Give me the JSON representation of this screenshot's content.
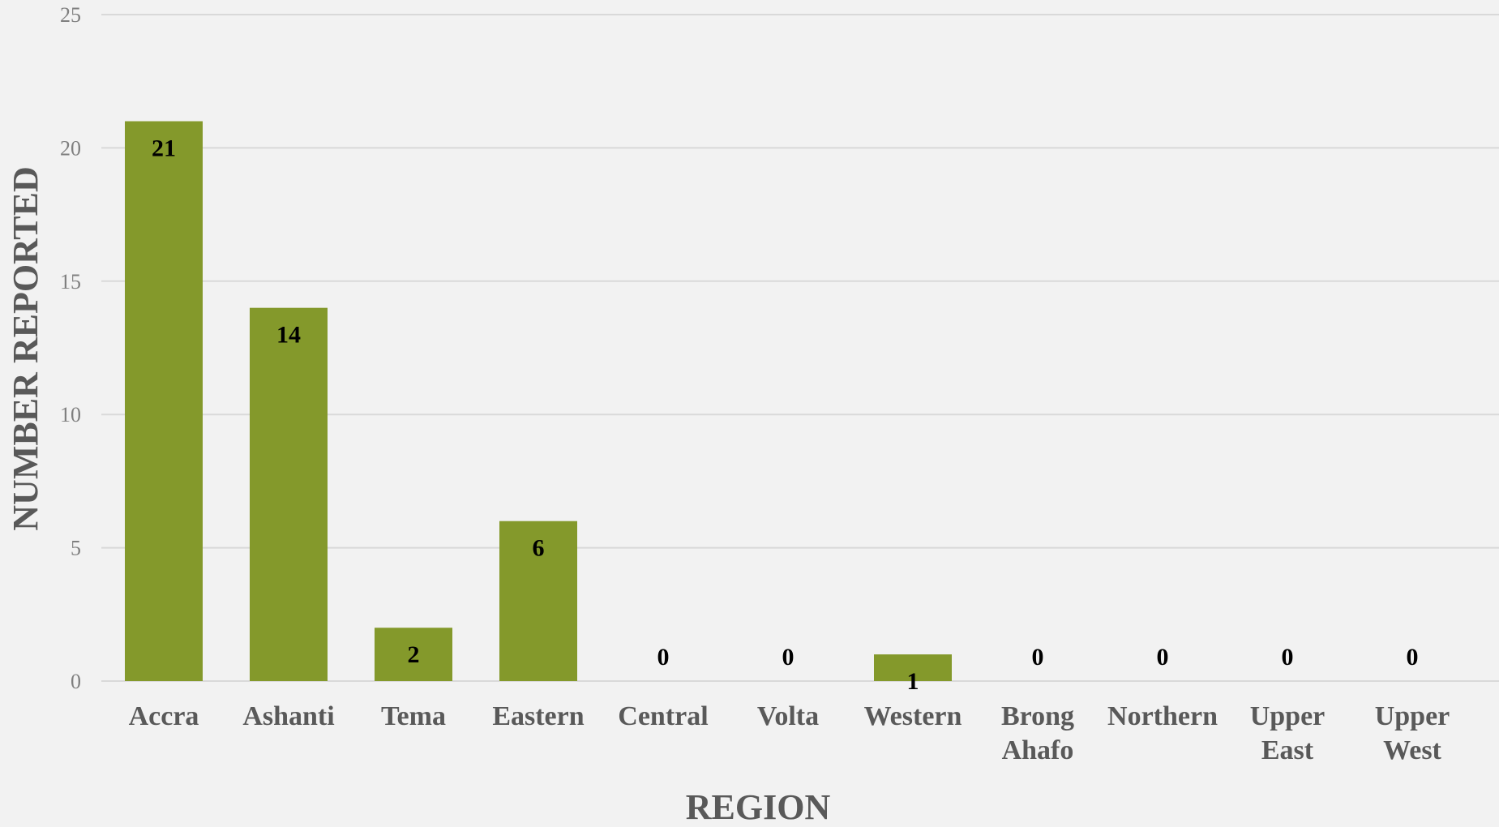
{
  "chart_data": {
    "type": "bar",
    "title": "",
    "xlabel": "REGION",
    "ylabel": "NUMBER REPORTED",
    "ylim": [
      0,
      25
    ],
    "yticks": [
      0,
      5,
      10,
      15,
      20,
      25
    ],
    "grid": true,
    "legend": "none",
    "categories": [
      [
        "Accra"
      ],
      [
        "Ashanti"
      ],
      [
        "Tema"
      ],
      [
        "Eastern"
      ],
      [
        "Central"
      ],
      [
        "Volta"
      ],
      [
        "Western"
      ],
      [
        "Brong",
        "Ahafo"
      ],
      [
        "Northern"
      ],
      [
        "Upper",
        "East"
      ],
      [
        "Upper",
        "West"
      ]
    ],
    "values": [
      21,
      14,
      2,
      6,
      0,
      0,
      1,
      0,
      0,
      0,
      0
    ],
    "colors": {
      "bar": "#84992b",
      "grid": "#d9d9d9",
      "background": "#f2f2f2"
    }
  }
}
